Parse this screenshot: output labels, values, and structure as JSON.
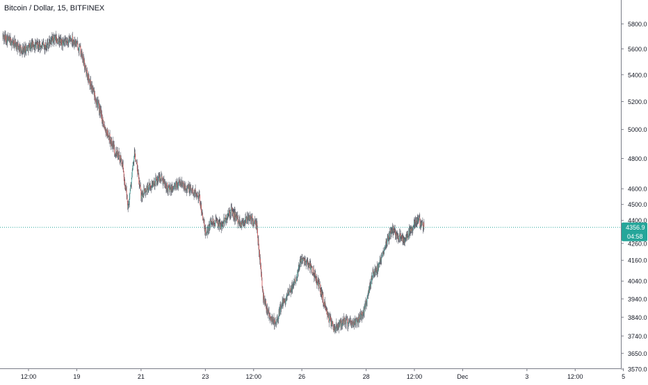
{
  "header": {
    "title": "Bitcoin / Dollar, 15, BITFINEX"
  },
  "colors": {
    "up": "#26a69a",
    "down": "#ef5350",
    "wick": "#5d606b",
    "grid_axis": "#787b86",
    "price_line": "#26a69a",
    "tag_bg": "#26a69a",
    "tag_text": "#ffffff",
    "background": "#ffffff",
    "text": "#131722"
  },
  "price_tag": {
    "price": "4356.9",
    "countdown": "04:58"
  },
  "chart_data": {
    "type": "candlestick",
    "title": "Bitcoin / Dollar, 15, BITFINEX",
    "y_scale": "log",
    "ylim": [
      3570,
      5900
    ],
    "yticks": [
      "3570.0",
      "3650.0",
      "3740.0",
      "3840.0",
      "3940.0",
      "4040.0",
      "4160.0",
      "4260.0",
      "4400.0",
      "4500.0",
      "4600.0",
      "4800.0",
      "5000.0",
      "5200.0",
      "5400.0",
      "5600.0",
      "5800.0"
    ],
    "xticks": [
      {
        "label": "12:00",
        "day": 17.5
      },
      {
        "label": "19",
        "day": 19
      },
      {
        "label": "21",
        "day": 21
      },
      {
        "label": "23",
        "day": 23
      },
      {
        "label": "12:00",
        "day": 24.5
      },
      {
        "label": "26",
        "day": 26
      },
      {
        "label": "28",
        "day": 28
      },
      {
        "label": "12:00",
        "day": 29.5
      },
      {
        "label": "Dec",
        "day": 31
      },
      {
        "label": "3",
        "day": 33
      },
      {
        "label": "12:00",
        "day": 34.5
      },
      {
        "label": "5",
        "day": 36
      }
    ],
    "xlim_day": [
      16.7,
      37.3
    ],
    "candle_count": 1208,
    "price_path": [
      [
        16.7,
        5700
      ],
      [
        17.0,
        5650
      ],
      [
        17.3,
        5590
      ],
      [
        17.6,
        5630
      ],
      [
        18.0,
        5620
      ],
      [
        18.3,
        5680
      ],
      [
        18.6,
        5640
      ],
      [
        18.85,
        5680
      ],
      [
        19.1,
        5600
      ],
      [
        19.3,
        5420
      ],
      [
        19.6,
        5220
      ],
      [
        19.9,
        5000
      ],
      [
        20.2,
        4850
      ],
      [
        20.4,
        4780
      ],
      [
        20.6,
        4480
      ],
      [
        20.8,
        4840
      ],
      [
        21.0,
        4560
      ],
      [
        21.3,
        4620
      ],
      [
        21.6,
        4680
      ],
      [
        21.9,
        4590
      ],
      [
        22.2,
        4640
      ],
      [
        22.5,
        4600
      ],
      [
        22.8,
        4560
      ],
      [
        23.0,
        4320
      ],
      [
        23.2,
        4400
      ],
      [
        23.5,
        4370
      ],
      [
        23.8,
        4460
      ],
      [
        24.1,
        4380
      ],
      [
        24.4,
        4420
      ],
      [
        24.6,
        4360
      ],
      [
        24.8,
        3950
      ],
      [
        25.0,
        3850
      ],
      [
        25.2,
        3800
      ],
      [
        25.35,
        3900
      ],
      [
        25.55,
        3950
      ],
      [
        25.8,
        4050
      ],
      [
        26.0,
        4180
      ],
      [
        26.3,
        4120
      ],
      [
        26.6,
        3980
      ],
      [
        26.8,
        3850
      ],
      [
        27.0,
        3780
      ],
      [
        27.3,
        3820
      ],
      [
        27.6,
        3800
      ],
      [
        27.9,
        3860
      ],
      [
        28.0,
        3920
      ],
      [
        28.2,
        4080
      ],
      [
        28.4,
        4120
      ],
      [
        28.6,
        4260
      ],
      [
        28.8,
        4350
      ],
      [
        29.0,
        4300
      ],
      [
        29.2,
        4280
      ],
      [
        29.4,
        4340
      ],
      [
        29.6,
        4410
      ],
      [
        29.8,
        4357
      ]
    ],
    "last_price": 4356.9
  }
}
